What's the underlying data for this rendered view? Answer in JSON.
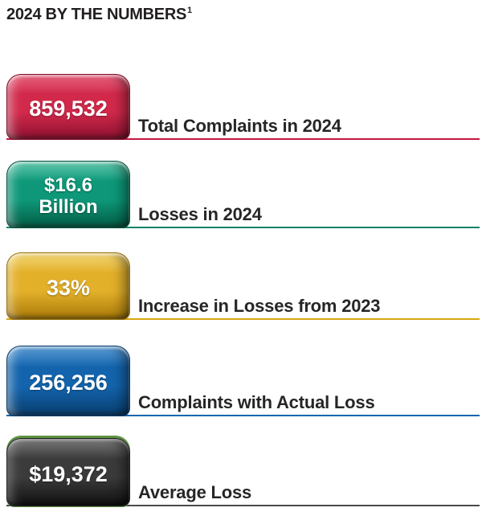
{
  "title": {
    "text": "2024 BY THE NUMBERS",
    "footnote_marker": "1"
  },
  "stats": [
    {
      "value": "859,532",
      "label": "Total Complaints in 2024",
      "color_name": "red",
      "pill_color": "#d2294b",
      "line_color": "#c3173e"
    },
    {
      "value": "$16.6 Billion",
      "value_lines": [
        "$16.6",
        "Billion"
      ],
      "label": "Losses in 2024",
      "color_name": "green",
      "pill_color": "#0e9879",
      "line_color": "#0b8268"
    },
    {
      "value": "33%",
      "label": "Increase in Losses from 2023",
      "color_name": "yellow",
      "pill_color": "#e3b02a",
      "line_color": "#d8a713"
    },
    {
      "value": "256,256",
      "label": "Complaints with Actual Loss",
      "color_name": "blue",
      "pill_color": "#1364ad",
      "line_color": "#1566af"
    },
    {
      "value": "$19,372",
      "label": "Average Loss",
      "color_name": "black",
      "pill_color": "#3b3b3b",
      "line_color": "#4a4a4a"
    }
  ],
  "chart_data": {
    "type": "table",
    "title": "2024 BY THE NUMBERS",
    "rows": [
      {
        "label": "Total Complaints in 2024",
        "value": "859,532",
        "numeric": 859532,
        "color": "#d2294b"
      },
      {
        "label": "Losses in 2024",
        "value": "$16.6 Billion",
        "numeric": 16600000000,
        "color": "#0e9879"
      },
      {
        "label": "Increase in Losses from 2023",
        "value": "33%",
        "numeric": 33,
        "color": "#e3b02a"
      },
      {
        "label": "Complaints with Actual Loss",
        "value": "256,256",
        "numeric": 256256,
        "color": "#1364ad"
      },
      {
        "label": "Average Loss",
        "value": "$19,372",
        "numeric": 19372,
        "color": "#3b3b3b"
      }
    ]
  }
}
